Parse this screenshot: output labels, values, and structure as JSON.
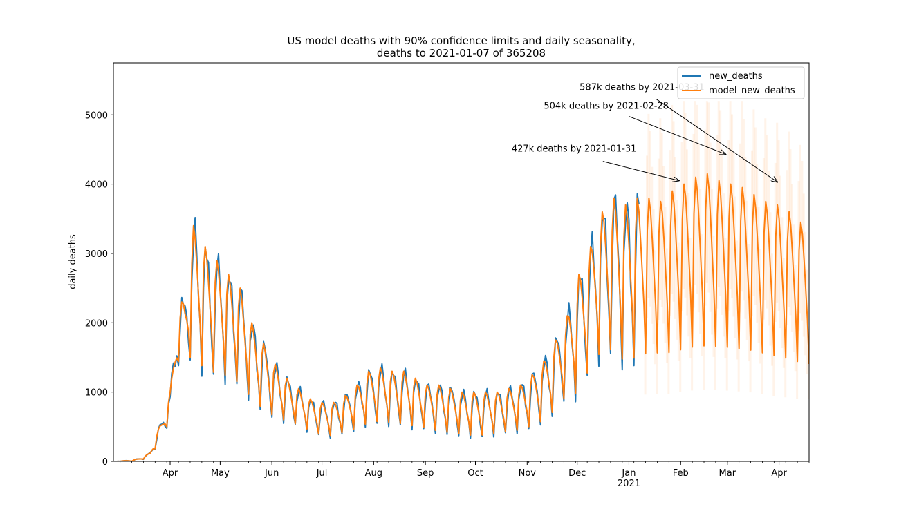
{
  "chart_data": {
    "type": "line",
    "title_line1": "US model deaths with 90% confidence limits and daily seasonality,",
    "title_line2": "deaths to 2021-01-07 of 365208",
    "ylabel": "daily deaths",
    "xlabel": "",
    "x_range": [
      "2020-02-27",
      "2021-04-19"
    ],
    "ylim": [
      0,
      5750
    ],
    "y_ticks": [
      0,
      1000,
      2000,
      3000,
      4000,
      5000
    ],
    "x_ticks": [
      {
        "date": "2020-04-01",
        "label": "Apr"
      },
      {
        "date": "2020-05-01",
        "label": "May"
      },
      {
        "date": "2020-06-01",
        "label": "Jun"
      },
      {
        "date": "2020-07-01",
        "label": "Jul"
      },
      {
        "date": "2020-08-01",
        "label": "Aug"
      },
      {
        "date": "2020-09-01",
        "label": "Sep"
      },
      {
        "date": "2020-10-01",
        "label": "Oct"
      },
      {
        "date": "2020-11-01",
        "label": "Nov"
      },
      {
        "date": "2020-12-01",
        "label": "Dec"
      },
      {
        "date": "2021-01-01",
        "label": "Jan",
        "sublabel": "2021"
      },
      {
        "date": "2021-02-01",
        "label": "Feb"
      },
      {
        "date": "2021-03-01",
        "label": "Mar"
      },
      {
        "date": "2021-04-01",
        "label": "Apr"
      }
    ],
    "legend": {
      "placement": "top-right"
    },
    "series": [
      {
        "name": "new_deaths",
        "color": "#1f77b4",
        "date_range": [
          "2020-02-29",
          "2021-01-07"
        ]
      },
      {
        "name": "model_new_deaths",
        "color": "#ff7f0e",
        "date_range": [
          "2020-02-29",
          "2021-04-19"
        ]
      }
    ],
    "confidence_band": {
      "color": "#ff7f0e",
      "level": "90%",
      "date_range": [
        "2021-01-11",
        "2021-04-19"
      ],
      "lower_min": 900,
      "upper_max": 5200
    },
    "envelope": [
      [
        "2020-02-29",
        0,
        0
      ],
      [
        "2020-03-10",
        20,
        0
      ],
      [
        "2020-03-16",
        60,
        30
      ],
      [
        "2020-03-20",
        130,
        80
      ],
      [
        "2020-03-27",
        600,
        300
      ],
      [
        "2020-04-01",
        1000,
        600
      ],
      [
        "2020-04-06",
        2200,
        1400
      ],
      [
        "2020-04-10",
        2400,
        1300
      ],
      [
        "2020-04-15",
        3400,
        1500
      ],
      [
        "2020-04-22",
        3100,
        1200
      ],
      [
        "2020-04-29",
        2900,
        1200
      ],
      [
        "2020-05-06",
        2700,
        1150
      ],
      [
        "2020-05-13",
        2500,
        1050
      ],
      [
        "2020-05-20",
        2000,
        850
      ],
      [
        "2020-05-27",
        1700,
        700
      ],
      [
        "2020-06-03",
        1400,
        600
      ],
      [
        "2020-06-10",
        1200,
        550
      ],
      [
        "2020-06-17",
        1050,
        500
      ],
      [
        "2020-06-24",
        900,
        420
      ],
      [
        "2020-07-01",
        850,
        350
      ],
      [
        "2020-07-08",
        850,
        350
      ],
      [
        "2020-07-15",
        950,
        400
      ],
      [
        "2020-07-22",
        1100,
        450
      ],
      [
        "2020-07-29",
        1300,
        520
      ],
      [
        "2020-08-05",
        1350,
        540
      ],
      [
        "2020-08-12",
        1300,
        520
      ],
      [
        "2020-08-19",
        1300,
        500
      ],
      [
        "2020-08-26",
        1200,
        470
      ],
      [
        "2020-09-02",
        1100,
        450
      ],
      [
        "2020-09-09",
        1100,
        400
      ],
      [
        "2020-09-16",
        1050,
        380
      ],
      [
        "2020-09-23",
        1000,
        360
      ],
      [
        "2020-09-30",
        1000,
        340
      ],
      [
        "2020-10-07",
        1000,
        350
      ],
      [
        "2020-10-14",
        1000,
        380
      ],
      [
        "2020-10-21",
        1050,
        400
      ],
      [
        "2020-10-28",
        1100,
        420
      ],
      [
        "2020-11-04",
        1250,
        480
      ],
      [
        "2020-11-11",
        1450,
        550
      ],
      [
        "2020-11-18",
        1750,
        700
      ],
      [
        "2020-11-25",
        2100,
        900
      ],
      [
        "2020-12-02",
        2700,
        900
      ],
      [
        "2020-12-09",
        3100,
        1300
      ],
      [
        "2020-12-16",
        3600,
        1500
      ],
      [
        "2020-12-23",
        3800,
        1500
      ],
      [
        "2020-12-30",
        3700,
        1300
      ],
      [
        "2021-01-06",
        3800,
        1400
      ],
      [
        "2021-01-13",
        3800,
        1450
      ],
      [
        "2021-01-20",
        3750,
        1450
      ],
      [
        "2021-01-27",
        3900,
        1450
      ],
      [
        "2021-02-03",
        4000,
        1500
      ],
      [
        "2021-02-10",
        4100,
        1530
      ],
      [
        "2021-02-17",
        4150,
        1540
      ],
      [
        "2021-02-24",
        4050,
        1530
      ],
      [
        "2021-03-03",
        4000,
        1520
      ],
      [
        "2021-03-10",
        3950,
        1500
      ],
      [
        "2021-03-17",
        3850,
        1480
      ],
      [
        "2021-03-24",
        3750,
        1440
      ],
      [
        "2021-03-31",
        3700,
        1400
      ],
      [
        "2021-04-07",
        3600,
        1370
      ],
      [
        "2021-04-14",
        3450,
        1320
      ],
      [
        "2021-04-19",
        3400,
        1300
      ]
    ],
    "annotations": [
      {
        "text": "427k deaths by 2021-01-31",
        "arrow_to": {
          "date": "2021-01-31",
          "value": 4050
        }
      },
      {
        "text": "504k deaths by 2021-02-28",
        "arrow_to": {
          "date": "2021-02-28",
          "value": 4430
        }
      },
      {
        "text": "587k deaths by 2021-03-31",
        "arrow_to": {
          "date": "2021-03-31",
          "value": 4030
        }
      }
    ]
  }
}
